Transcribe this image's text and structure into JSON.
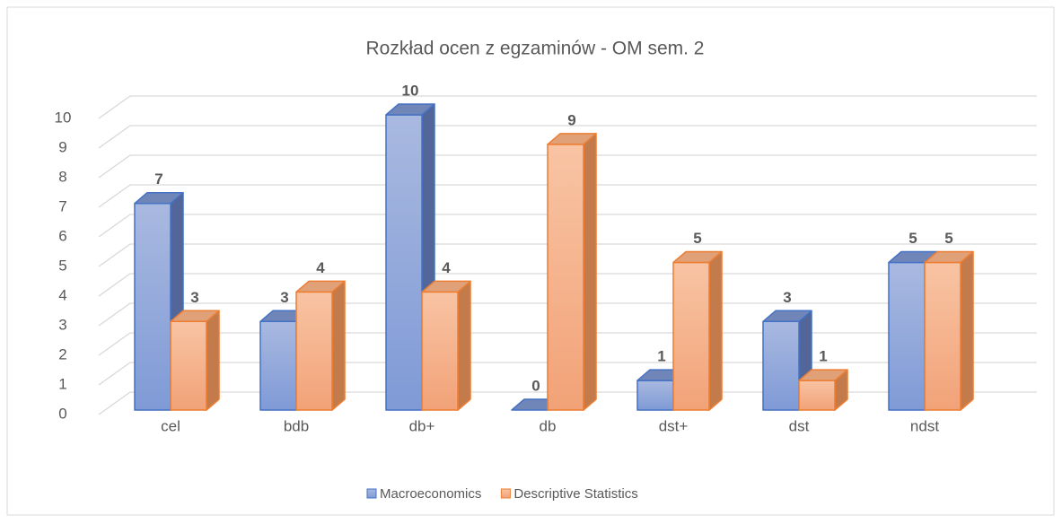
{
  "chart_data": {
    "type": "bar3d",
    "title": "Rozkład ocen z egzaminów - OM sem. 2",
    "categories": [
      "cel",
      "bdb",
      "db+",
      "db",
      "dst+",
      "dst",
      "ndst"
    ],
    "series": [
      {
        "name": "Macroeconomics",
        "color": "#4472c4",
        "values": [
          7,
          3,
          10,
          0,
          1,
          3,
          5
        ]
      },
      {
        "name": "Descriptive Statistics",
        "color": "#ed7d31",
        "values": [
          3,
          4,
          4,
          9,
          5,
          1,
          5
        ]
      }
    ],
    "ylim": [
      0,
      10
    ],
    "yticks": [
      0,
      1,
      2,
      3,
      4,
      5,
      6,
      7,
      8,
      9,
      10
    ],
    "grid": true,
    "legend": "bottom"
  }
}
